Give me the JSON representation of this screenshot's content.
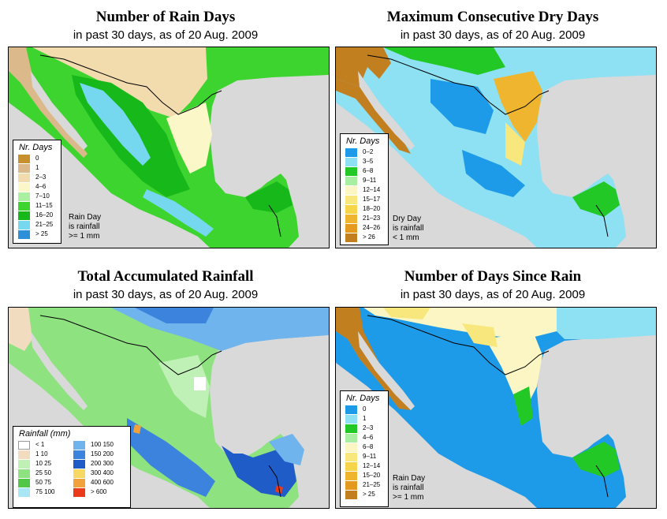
{
  "panels": [
    {
      "title": "Number of Rain Days",
      "subtitle": "in past 30 days, as of  20 Aug. 2009",
      "legend_title": "Nr. Days",
      "legend": [
        {
          "label": "0",
          "color": "#c8902c"
        },
        {
          "label": "1",
          "color": "#dcb98a"
        },
        {
          "label": "2–3",
          "color": "#f2dcae"
        },
        {
          "label": "4–6",
          "color": "#fcf7c8"
        },
        {
          "label": "7–10",
          "color": "#a9f0a0"
        },
        {
          "label": "11–15",
          "color": "#3ed42f"
        },
        {
          "label": "16–20",
          "color": "#17b81a"
        },
        {
          "label": "21–25",
          "color": "#75d8ef"
        },
        {
          "label": "> 25",
          "color": "#2d8fd8"
        }
      ],
      "note": "Rain Day\nis rainfall\n>= 1 mm"
    },
    {
      "title": "Maximum Consecutive Dry Days",
      "subtitle": "in past 30 days, as of  20 Aug. 2009",
      "legend_title": "Nr. Days",
      "legend": [
        {
          "label": "0–2",
          "color": "#1e9be8"
        },
        {
          "label": "3–5",
          "color": "#8ee0f3"
        },
        {
          "label": "6–8",
          "color": "#22c825"
        },
        {
          "label": "9–11",
          "color": "#a8efa2"
        },
        {
          "label": "12–14",
          "color": "#fbf6c4"
        },
        {
          "label": "15–17",
          "color": "#f8e77c"
        },
        {
          "label": "18–20",
          "color": "#f6d54a"
        },
        {
          "label": "21–23",
          "color": "#efb52e"
        },
        {
          "label": "24–26",
          "color": "#e49a1e"
        },
        {
          "label": "> 26",
          "color": "#c27f1f"
        }
      ],
      "note": "Dry Day\nis rainfall\n< 1 mm"
    },
    {
      "title": "Total Accumulated Rainfall",
      "subtitle": "in past 30 days, as of  20 Aug. 2009",
      "legend_title": "Rainfall (mm)",
      "legend": [
        {
          "label": "< 1",
          "color": "#ffffff"
        },
        {
          "label": "1   10",
          "color": "#f2dcc0"
        },
        {
          "label": "10   25",
          "color": "#bff0b5"
        },
        {
          "label": "25   50",
          "color": "#8ee27f"
        },
        {
          "label": "50   75",
          "color": "#52c646"
        },
        {
          "label": "75   100",
          "color": "#a8e6f5"
        },
        {
          "label": "100   150",
          "color": "#6fb4ec"
        },
        {
          "label": "150   200",
          "color": "#3b83dc"
        },
        {
          "label": "200   300",
          "color": "#1f5cc8"
        },
        {
          "label": "300   400",
          "color": "#f6d863"
        },
        {
          "label": "400   600",
          "color": "#f2a23a"
        },
        {
          "label": "> 600",
          "color": "#ea3a1a"
        }
      ],
      "note": ""
    },
    {
      "title": "Number of Days Since Rain",
      "subtitle": "in past 30 days, as of  20 Aug. 2009",
      "legend_title": "Nr. Days",
      "legend": [
        {
          "label": "0",
          "color": "#1e9be8"
        },
        {
          "label": "1",
          "color": "#8ee0f3"
        },
        {
          "label": "2–3",
          "color": "#22c825"
        },
        {
          "label": "4–6",
          "color": "#a8efa2"
        },
        {
          "label": "6–8",
          "color": "#fbf6c4"
        },
        {
          "label": "9–11",
          "color": "#f8e77c"
        },
        {
          "label": "12–14",
          "color": "#f6d54a"
        },
        {
          "label": "15–20",
          "color": "#efb52e"
        },
        {
          "label": "21–25",
          "color": "#e49a1e"
        },
        {
          "label": "> 25",
          "color": "#c27f1f"
        }
      ],
      "note": "Rain Day\nis rainfall\n>= 1 mm"
    }
  ],
  "colors": {
    "ocean": "#d9d9d9",
    "border": "#000000"
  }
}
